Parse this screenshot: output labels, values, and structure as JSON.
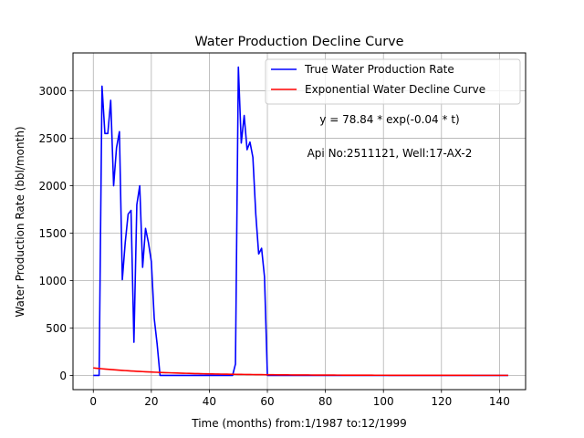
{
  "chart_data": {
    "type": "line",
    "title": "Water Production Decline Curve",
    "xlabel": "Time (months) from:1/1987 to:12/1999",
    "ylabel": "Water Production Rate (bbl/month)",
    "xlim": [
      -7,
      149
    ],
    "ylim": [
      -150,
      3400
    ],
    "xticks": [
      0,
      20,
      40,
      60,
      80,
      100,
      120,
      140
    ],
    "yticks": [
      0,
      500,
      1000,
      1500,
      2000,
      2500,
      3000
    ],
    "grid": true,
    "legend_position": "top-right",
    "annotations": [
      {
        "text": "y = 78.84 * exp(-0.04 * t)",
        "x": 100,
        "y": 2660
      },
      {
        "text": "Api No:2511121, Well:17-AX-2",
        "x": 100,
        "y": 2310
      }
    ],
    "series": [
      {
        "name": "True Water Production Rate",
        "color": "#0000ff",
        "x": [
          0,
          1,
          2,
          3,
          4,
          5,
          6,
          7,
          8,
          9,
          10,
          11,
          12,
          13,
          14,
          15,
          16,
          17,
          18,
          19,
          20,
          21,
          22,
          23,
          24,
          25,
          26,
          27,
          28,
          29,
          30,
          31,
          32,
          33,
          34,
          35,
          36,
          37,
          38,
          39,
          40,
          41,
          42,
          43,
          44,
          45,
          46,
          47,
          48,
          49,
          50,
          51,
          52,
          53,
          54,
          55,
          56,
          57,
          58,
          59,
          60,
          61,
          62,
          63,
          64,
          65,
          66,
          67,
          68,
          69,
          70,
          71,
          72,
          73,
          74,
          75,
          76,
          77,
          78,
          79,
          80,
          81,
          82,
          83,
          84,
          85,
          86,
          87,
          88,
          89,
          90,
          91,
          92,
          93,
          94,
          95,
          96,
          97,
          98,
          99,
          100,
          101,
          102,
          103,
          104,
          105,
          106,
          107,
          108,
          109,
          110,
          111,
          112,
          113,
          114,
          115,
          116,
          117,
          118,
          119,
          120,
          121,
          122,
          123,
          124,
          125,
          126,
          127,
          128,
          129,
          130,
          131,
          132,
          133,
          134,
          135,
          136,
          137,
          138,
          139,
          140,
          141,
          142,
          143
        ],
        "y": [
          0,
          0,
          0,
          3050,
          2550,
          2550,
          2900,
          2000,
          2400,
          2570,
          1010,
          1400,
          1700,
          1740,
          350,
          1800,
          2000,
          1140,
          1550,
          1400,
          1200,
          600,
          330,
          0,
          0,
          0,
          0,
          0,
          0,
          0,
          0,
          0,
          0,
          0,
          0,
          0,
          0,
          0,
          0,
          0,
          0,
          0,
          0,
          0,
          0,
          0,
          0,
          0,
          0,
          120,
          3250,
          2450,
          2740,
          2380,
          2460,
          2300,
          1700,
          1280,
          1340,
          1040,
          0,
          0,
          0,
          0,
          0,
          0,
          0,
          0,
          0,
          0,
          0,
          0,
          0,
          0,
          0,
          0,
          0,
          0,
          0,
          0,
          0,
          0,
          0,
          0,
          0,
          0,
          0,
          0,
          0,
          0,
          0,
          0,
          0,
          0,
          0,
          0,
          0,
          0,
          0,
          0,
          0,
          0,
          0,
          0,
          0,
          0,
          0,
          0,
          0,
          0,
          0,
          0,
          0,
          0,
          0,
          0,
          0,
          0,
          0,
          0,
          0,
          0,
          0,
          0,
          0,
          0,
          0,
          0,
          0,
          0,
          0,
          0,
          0,
          0,
          0,
          0,
          0,
          0,
          0,
          0,
          0,
          0,
          0,
          0
        ]
      },
      {
        "name": "Exponential Water Decline Curve",
        "color": "#ff0000",
        "model": {
          "a": 78.84,
          "b": -0.04
        },
        "x_range": [
          0,
          143
        ]
      }
    ]
  }
}
